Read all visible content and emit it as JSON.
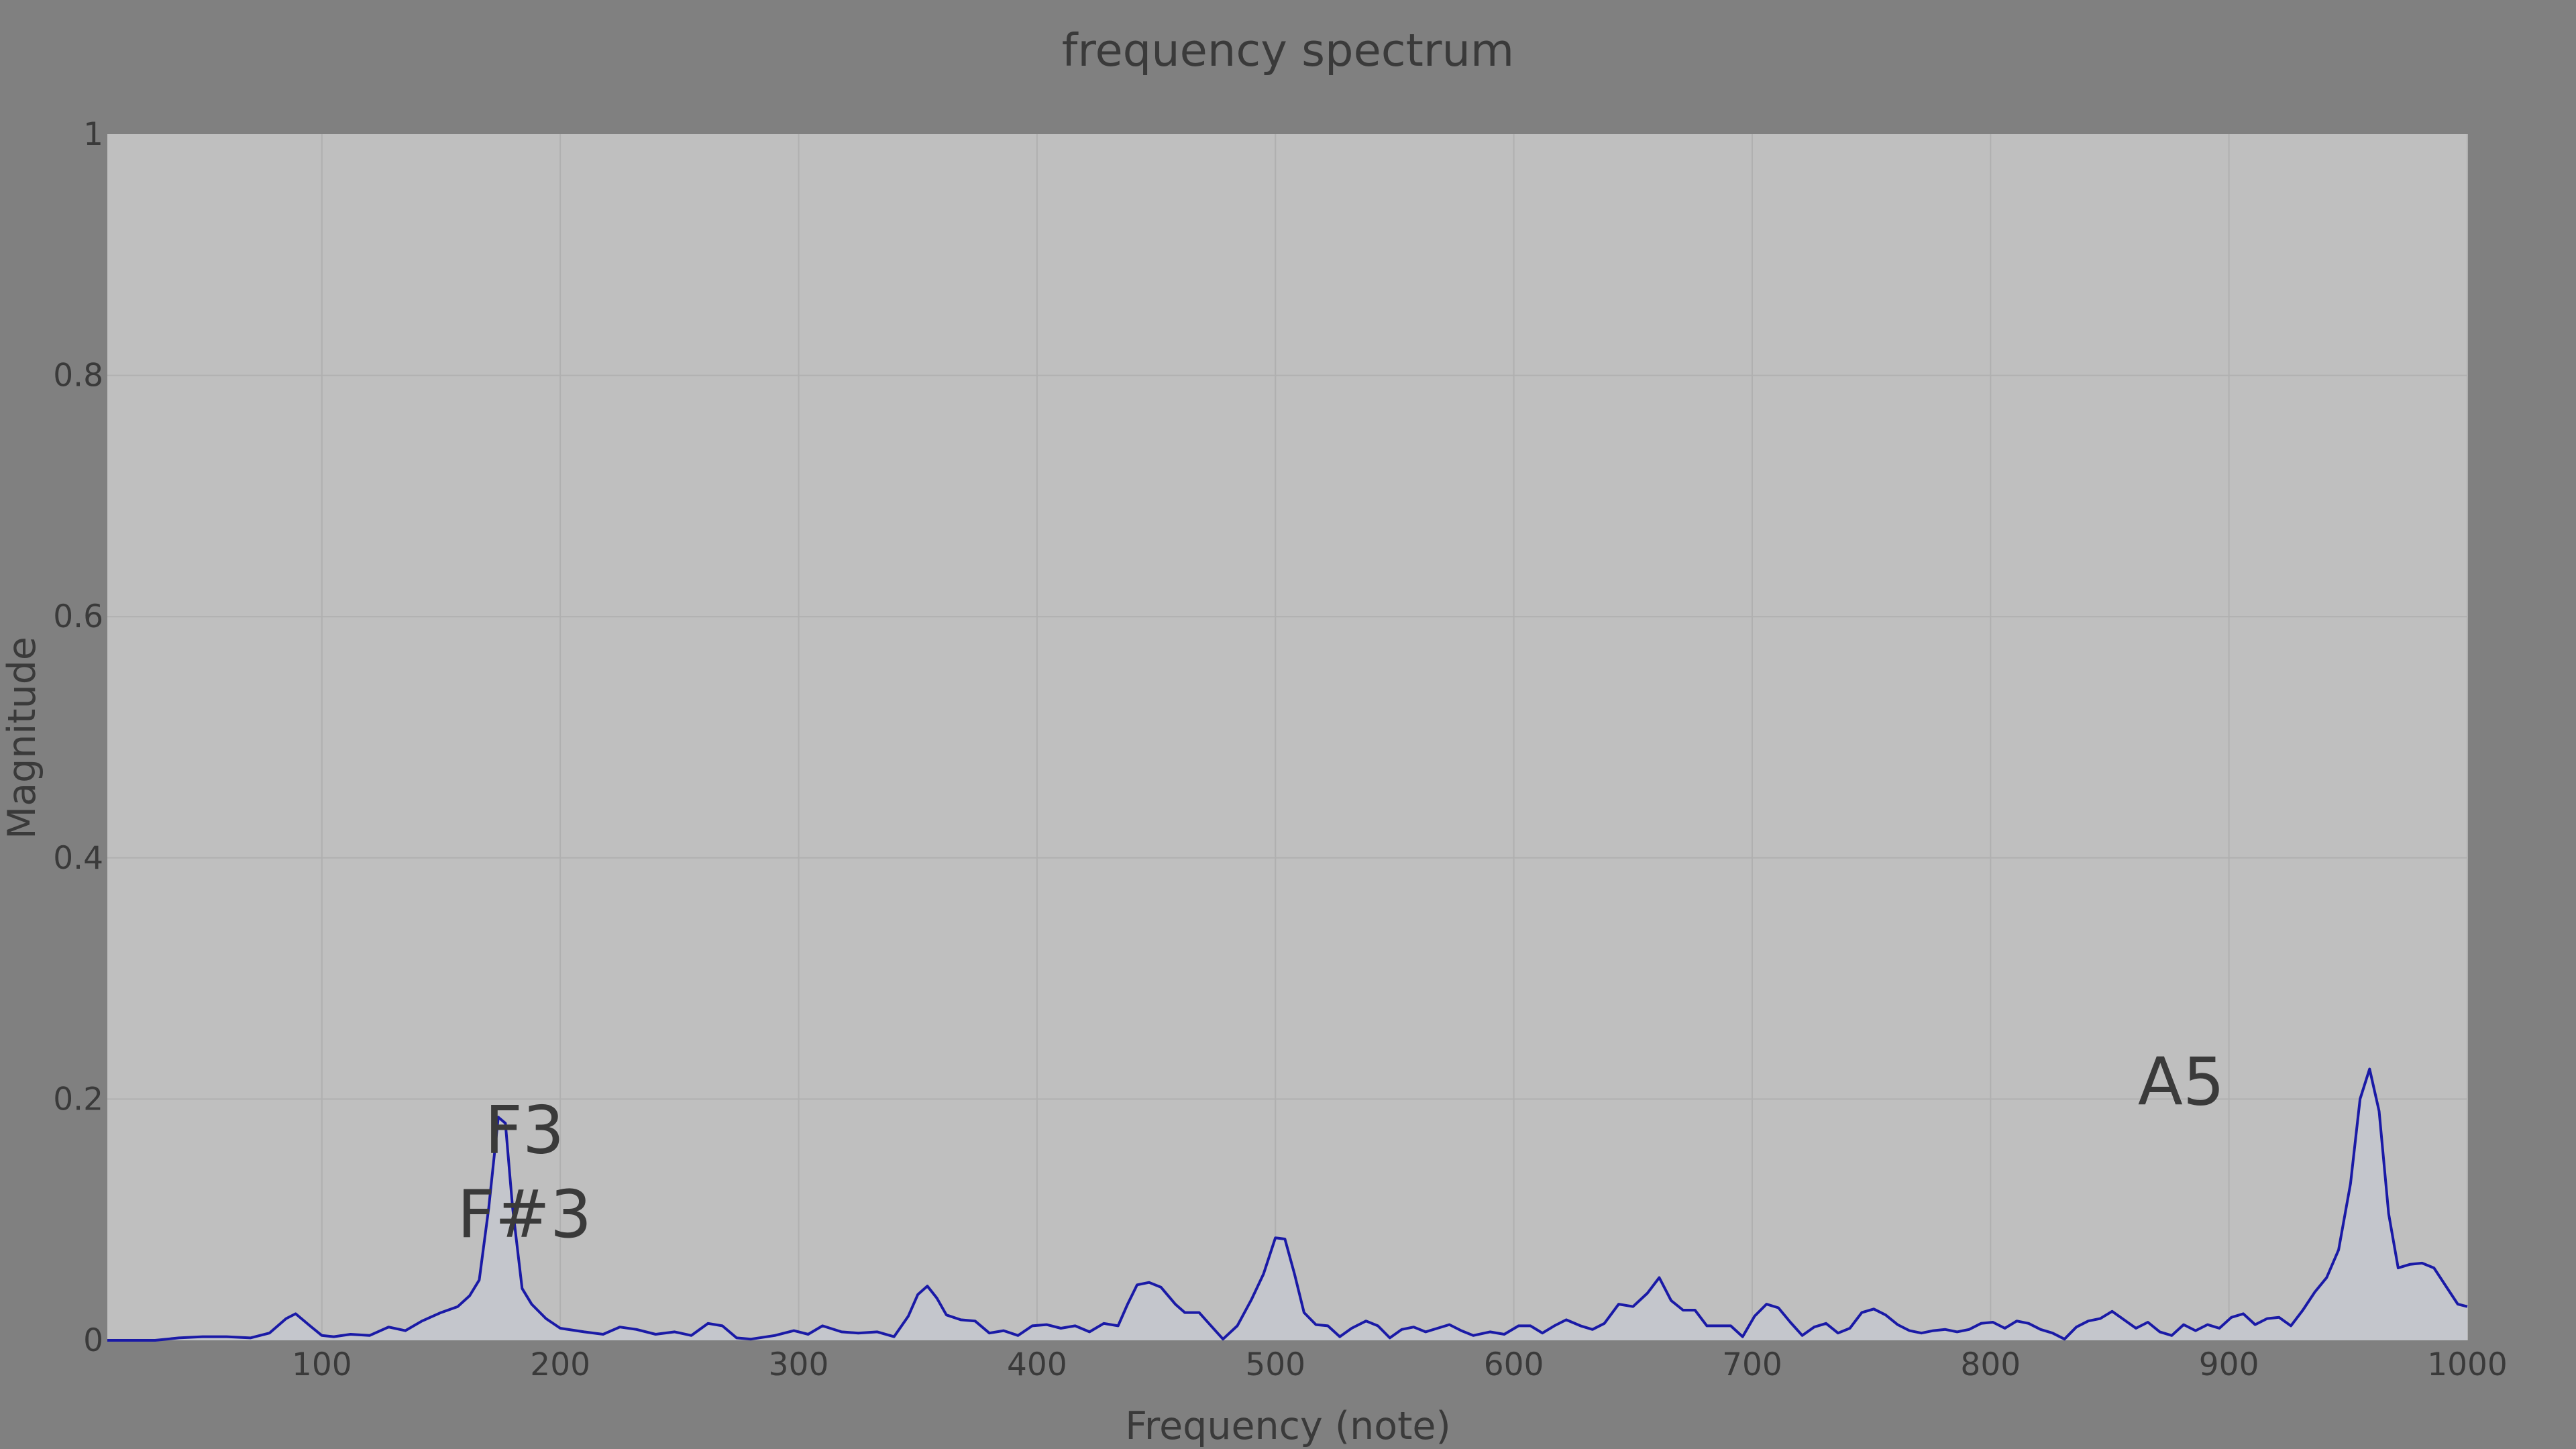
{
  "chart_data": {
    "type": "line",
    "title": "frequency spectrum",
    "xlabel": "Frequency (note)",
    "ylabel": "Magnitude",
    "xlim": [
      10,
      1000
    ],
    "ylim": [
      0,
      1
    ],
    "grid": true,
    "x_ticks": [
      100,
      200,
      300,
      400,
      500,
      600,
      700,
      800,
      900,
      1000
    ],
    "y_ticks": [
      0,
      0.2,
      0.4,
      0.6,
      0.8,
      1
    ],
    "y_tick_labels": [
      "0",
      "0.2",
      "0.4",
      "0.6",
      "0.8",
      "1"
    ],
    "colors": {
      "figure_background": "#808080",
      "plot_background": "#bfbfbf",
      "line": "#1a1aa6",
      "fill": "#c4c6cc",
      "text": "#3a3a3a",
      "grid": "#b0b0b0"
    },
    "annotations": [
      {
        "text": "F3",
        "x": 185,
        "y": 0.175
      },
      {
        "text": "F#3",
        "x": 185,
        "y": 0.105
      },
      {
        "text": "A5",
        "x": 880,
        "y": 0.215
      }
    ],
    "series": [
      {
        "values": [
          [
            10,
            0.0
          ],
          [
            30,
            0.0
          ],
          [
            40,
            0.002
          ],
          [
            50,
            0.003
          ],
          [
            60,
            0.003
          ],
          [
            70,
            0.002
          ],
          [
            78,
            0.006
          ],
          [
            85,
            0.018
          ],
          [
            89,
            0.022
          ],
          [
            95,
            0.012
          ],
          [
            100,
            0.004
          ],
          [
            105,
            0.003
          ],
          [
            112,
            0.005
          ],
          [
            120,
            0.004
          ],
          [
            128,
            0.011
          ],
          [
            135,
            0.008
          ],
          [
            142,
            0.016
          ],
          [
            150,
            0.023
          ],
          [
            157,
            0.028
          ],
          [
            162,
            0.037
          ],
          [
            166,
            0.05
          ],
          [
            170,
            0.11
          ],
          [
            174,
            0.185
          ],
          [
            177,
            0.18
          ],
          [
            180,
            0.11
          ],
          [
            184,
            0.043
          ],
          [
            188,
            0.03
          ],
          [
            194,
            0.018
          ],
          [
            200,
            0.01
          ],
          [
            210,
            0.007
          ],
          [
            218,
            0.005
          ],
          [
            225,
            0.011
          ],
          [
            232,
            0.009
          ],
          [
            240,
            0.005
          ],
          [
            248,
            0.007
          ],
          [
            255,
            0.004
          ],
          [
            262,
            0.014
          ],
          [
            268,
            0.012
          ],
          [
            274,
            0.002
          ],
          [
            280,
            0.001
          ],
          [
            290,
            0.004
          ],
          [
            298,
            0.008
          ],
          [
            304,
            0.005
          ],
          [
            310,
            0.012
          ],
          [
            318,
            0.007
          ],
          [
            325,
            0.006
          ],
          [
            333,
            0.007
          ],
          [
            340,
            0.003
          ],
          [
            346,
            0.02
          ],
          [
            350,
            0.038
          ],
          [
            354,
            0.045
          ],
          [
            358,
            0.035
          ],
          [
            362,
            0.021
          ],
          [
            368,
            0.017
          ],
          [
            374,
            0.016
          ],
          [
            380,
            0.006
          ],
          [
            386,
            0.008
          ],
          [
            392,
            0.004
          ],
          [
            398,
            0.012
          ],
          [
            404,
            0.013
          ],
          [
            410,
            0.01
          ],
          [
            416,
            0.012
          ],
          [
            422,
            0.007
          ],
          [
            428,
            0.014
          ],
          [
            434,
            0.012
          ],
          [
            438,
            0.03
          ],
          [
            442,
            0.046
          ],
          [
            447,
            0.048
          ],
          [
            452,
            0.044
          ],
          [
            458,
            0.03
          ],
          [
            462,
            0.023
          ],
          [
            468,
            0.023
          ],
          [
            473,
            0.012
          ],
          [
            478,
            0.001
          ],
          [
            484,
            0.012
          ],
          [
            490,
            0.034
          ],
          [
            495,
            0.055
          ],
          [
            500,
            0.085
          ],
          [
            504,
            0.084
          ],
          [
            508,
            0.055
          ],
          [
            512,
            0.023
          ],
          [
            517,
            0.013
          ],
          [
            522,
            0.012
          ],
          [
            527,
            0.003
          ],
          [
            532,
            0.01
          ],
          [
            538,
            0.016
          ],
          [
            543,
            0.012
          ],
          [
            548,
            0.002
          ],
          [
            553,
            0.009
          ],
          [
            558,
            0.011
          ],
          [
            563,
            0.007
          ],
          [
            568,
            0.01
          ],
          [
            573,
            0.013
          ],
          [
            578,
            0.008
          ],
          [
            583,
            0.004
          ],
          [
            590,
            0.007
          ],
          [
            596,
            0.005
          ],
          [
            602,
            0.012
          ],
          [
            607,
            0.012
          ],
          [
            612,
            0.006
          ],
          [
            617,
            0.012
          ],
          [
            622,
            0.017
          ],
          [
            628,
            0.012
          ],
          [
            633,
            0.009
          ],
          [
            638,
            0.014
          ],
          [
            644,
            0.03
          ],
          [
            650,
            0.028
          ],
          [
            656,
            0.039
          ],
          [
            661,
            0.052
          ],
          [
            666,
            0.033
          ],
          [
            671,
            0.025
          ],
          [
            676,
            0.025
          ],
          [
            681,
            0.012
          ],
          [
            686,
            0.012
          ],
          [
            691,
            0.012
          ],
          [
            696,
            0.003
          ],
          [
            701,
            0.02
          ],
          [
            706,
            0.03
          ],
          [
            711,
            0.027
          ],
          [
            716,
            0.015
          ],
          [
            721,
            0.004
          ],
          [
            726,
            0.011
          ],
          [
            731,
            0.014
          ],
          [
            736,
            0.006
          ],
          [
            741,
            0.01
          ],
          [
            746,
            0.023
          ],
          [
            751,
            0.026
          ],
          [
            756,
            0.021
          ],
          [
            761,
            0.013
          ],
          [
            766,
            0.008
          ],
          [
            771,
            0.006
          ],
          [
            776,
            0.008
          ],
          [
            781,
            0.009
          ],
          [
            786,
            0.007
          ],
          [
            791,
            0.009
          ],
          [
            796,
            0.014
          ],
          [
            801,
            0.015
          ],
          [
            806,
            0.01
          ],
          [
            811,
            0.016
          ],
          [
            816,
            0.014
          ],
          [
            821,
            0.009
          ],
          [
            826,
            0.006
          ],
          [
            831,
            0.001
          ],
          [
            836,
            0.011
          ],
          [
            841,
            0.016
          ],
          [
            846,
            0.018
          ],
          [
            851,
            0.024
          ],
          [
            856,
            0.017
          ],
          [
            861,
            0.01
          ],
          [
            866,
            0.015
          ],
          [
            871,
            0.007
          ],
          [
            876,
            0.004
          ],
          [
            881,
            0.013
          ],
          [
            886,
            0.008
          ],
          [
            891,
            0.013
          ],
          [
            896,
            0.01
          ],
          [
            901,
            0.019
          ],
          [
            906,
            0.022
          ],
          [
            911,
            0.013
          ],
          [
            916,
            0.018
          ],
          [
            921,
            0.019
          ],
          [
            926,
            0.012
          ],
          [
            931,
            0.025
          ],
          [
            936,
            0.04
          ],
          [
            941,
            0.052
          ],
          [
            946,
            0.075
          ],
          [
            951,
            0.13
          ],
          [
            955,
            0.2
          ],
          [
            959,
            0.225
          ],
          [
            963,
            0.19
          ],
          [
            967,
            0.105
          ],
          [
            971,
            0.06
          ],
          [
            976,
            0.063
          ],
          [
            981,
            0.064
          ],
          [
            986,
            0.06
          ],
          [
            991,
            0.045
          ],
          [
            996,
            0.03
          ],
          [
            1000,
            0.028
          ]
        ]
      }
    ]
  }
}
